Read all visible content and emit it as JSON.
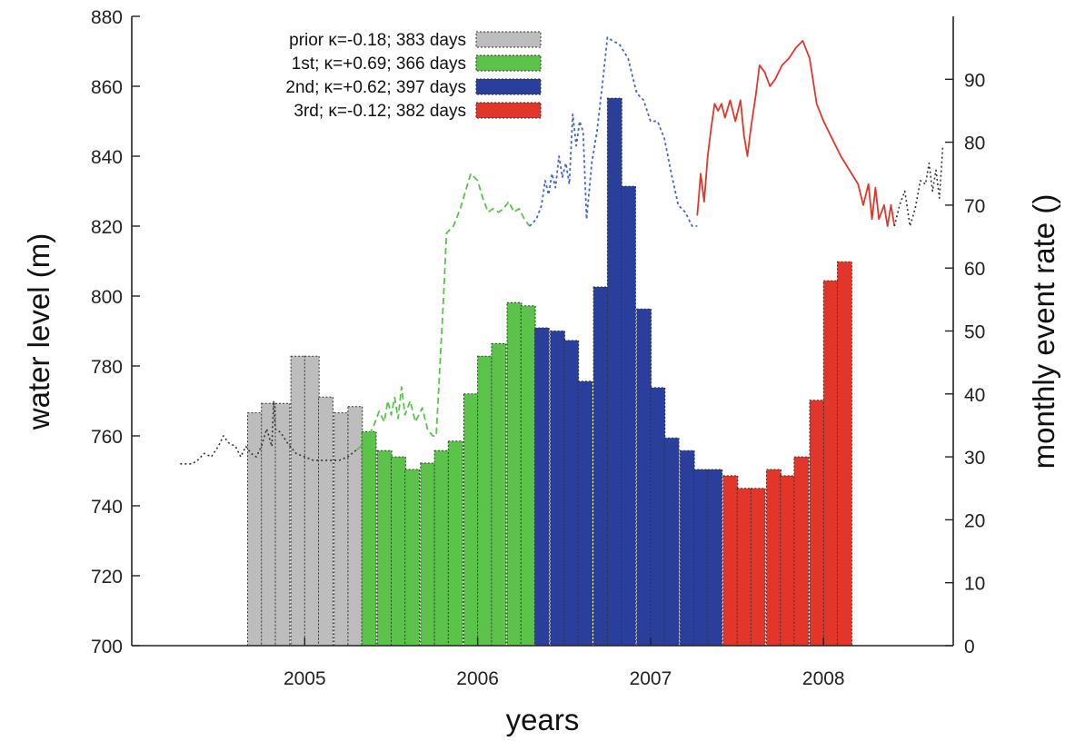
{
  "chart_data": {
    "type": "bar+line",
    "xlabel": "years",
    "ylabel_left": "water level (m)",
    "ylabel_right": "monthly event rate ()",
    "xlim": [
      2004.0,
      2008.75
    ],
    "ylim_left": [
      700,
      880
    ],
    "ylim_right": [
      0,
      100
    ],
    "x_ticks": [
      "2005",
      "2006",
      "2007",
      "2008"
    ],
    "x_tick_values": [
      2005.0,
      2006.0,
      2007.0,
      2008.0
    ],
    "y_ticks_left": [
      700,
      720,
      740,
      760,
      780,
      800,
      820,
      840,
      860,
      880
    ],
    "y_ticks_right": [
      0,
      10,
      20,
      30,
      40,
      50,
      60,
      70,
      80,
      90
    ],
    "legend": {
      "placement": "top-left",
      "entries": [
        {
          "label": "prior κ=-0.18; 383 days",
          "color": "#bdbdbd",
          "pattern": "dotted"
        },
        {
          "label": "1st; κ=+0.69; 366 days",
          "color": "#5bc34a",
          "pattern": "dashed"
        },
        {
          "label": "2nd; κ=+0.62; 397 days",
          "color": "#2a3f9c",
          "pattern": "short-dashed"
        },
        {
          "label": "3rd; κ=-0.12; 382 days",
          "color": "#e2362b",
          "pattern": "solid"
        }
      ]
    },
    "colors": {
      "prior_bar": "#bdbdbd",
      "prior_line": "#333333",
      "first": "#5bc34a",
      "second": "#2a3f9c",
      "second_line": "#4466cc",
      "third": "#e2362b"
    },
    "bar_width_years": 0.0833,
    "event_rate_bars": [
      {
        "x": 2004.67,
        "value": 37,
        "period": "prior"
      },
      {
        "x": 2004.75,
        "value": 38.5,
        "period": "prior"
      },
      {
        "x": 2004.83,
        "value": 38.5,
        "period": "prior"
      },
      {
        "x": 2004.92,
        "value": 46,
        "period": "prior"
      },
      {
        "x": 2005.0,
        "value": 46,
        "period": "prior"
      },
      {
        "x": 2005.08,
        "value": 39.5,
        "period": "prior"
      },
      {
        "x": 2005.17,
        "value": 37,
        "period": "prior"
      },
      {
        "x": 2005.25,
        "value": 38,
        "period": "prior"
      },
      {
        "x": 2005.33,
        "value": 34,
        "period": "first"
      },
      {
        "x": 2005.42,
        "value": 31,
        "period": "first"
      },
      {
        "x": 2005.5,
        "value": 30,
        "period": "first"
      },
      {
        "x": 2005.58,
        "value": 28,
        "period": "first"
      },
      {
        "x": 2005.67,
        "value": 29,
        "period": "first"
      },
      {
        "x": 2005.75,
        "value": 31,
        "period": "first"
      },
      {
        "x": 2005.83,
        "value": 32.5,
        "period": "first"
      },
      {
        "x": 2005.92,
        "value": 40,
        "period": "first"
      },
      {
        "x": 2006.0,
        "value": 46,
        "period": "first"
      },
      {
        "x": 2006.08,
        "value": 48,
        "period": "first"
      },
      {
        "x": 2006.17,
        "value": 54.5,
        "period": "first"
      },
      {
        "x": 2006.25,
        "value": 54,
        "period": "first"
      },
      {
        "x": 2006.33,
        "value": 50.5,
        "period": "second"
      },
      {
        "x": 2006.42,
        "value": 50,
        "period": "second"
      },
      {
        "x": 2006.5,
        "value": 48.5,
        "period": "second"
      },
      {
        "x": 2006.58,
        "value": 42,
        "period": "second"
      },
      {
        "x": 2006.67,
        "value": 57,
        "period": "second"
      },
      {
        "x": 2006.75,
        "value": 87,
        "period": "second"
      },
      {
        "x": 2006.83,
        "value": 73,
        "period": "second"
      },
      {
        "x": 2006.92,
        "value": 53.5,
        "period": "second"
      },
      {
        "x": 2007.0,
        "value": 41,
        "period": "second"
      },
      {
        "x": 2007.08,
        "value": 33,
        "period": "second"
      },
      {
        "x": 2007.17,
        "value": 31,
        "period": "second"
      },
      {
        "x": 2007.25,
        "value": 28,
        "period": "second"
      },
      {
        "x": 2007.33,
        "value": 28,
        "period": "second"
      },
      {
        "x": 2007.42,
        "value": 27,
        "period": "third"
      },
      {
        "x": 2007.5,
        "value": 25,
        "period": "third"
      },
      {
        "x": 2007.58,
        "value": 25,
        "period": "third"
      },
      {
        "x": 2007.67,
        "value": 28,
        "period": "third"
      },
      {
        "x": 2007.75,
        "value": 27,
        "period": "third"
      },
      {
        "x": 2007.83,
        "value": 30,
        "period": "third"
      },
      {
        "x": 2007.92,
        "value": 39,
        "period": "third"
      },
      {
        "x": 2008.0,
        "value": 58,
        "period": "third"
      },
      {
        "x": 2008.08,
        "value": 61,
        "period": "third"
      }
    ],
    "water_level_series": [
      {
        "period": "prior",
        "points": [
          [
            2004.28,
            752
          ],
          [
            2004.35,
            752
          ],
          [
            2004.38,
            753
          ],
          [
            2004.42,
            755
          ],
          [
            2004.46,
            754
          ],
          [
            2004.5,
            757
          ],
          [
            2004.53,
            760
          ],
          [
            2004.56,
            758
          ],
          [
            2004.6,
            757
          ],
          [
            2004.63,
            754
          ],
          [
            2004.66,
            757
          ],
          [
            2004.69,
            755
          ],
          [
            2004.72,
            754
          ],
          [
            2004.75,
            757
          ],
          [
            2004.78,
            762
          ],
          [
            2004.81,
            757
          ],
          [
            2004.82,
            770
          ],
          [
            2004.83,
            762
          ],
          [
            2004.86,
            761
          ],
          [
            2004.9,
            758
          ],
          [
            2004.95,
            755
          ],
          [
            2005.0,
            754
          ],
          [
            2005.05,
            753
          ],
          [
            2005.1,
            753
          ],
          [
            2005.15,
            753
          ],
          [
            2005.2,
            753
          ],
          [
            2005.25,
            754
          ],
          [
            2005.3,
            756
          ]
        ]
      },
      {
        "period": "first",
        "points": [
          [
            2005.3,
            756
          ],
          [
            2005.35,
            758
          ],
          [
            2005.4,
            763
          ],
          [
            2005.43,
            767
          ],
          [
            2005.46,
            764
          ],
          [
            2005.48,
            770
          ],
          [
            2005.5,
            766
          ],
          [
            2005.52,
            771
          ],
          [
            2005.54,
            765
          ],
          [
            2005.56,
            774
          ],
          [
            2005.58,
            766
          ],
          [
            2005.61,
            770
          ],
          [
            2005.64,
            764
          ],
          [
            2005.68,
            768
          ],
          [
            2005.71,
            762
          ],
          [
            2005.74,
            760
          ],
          [
            2005.76,
            760
          ],
          [
            2005.8,
            797
          ],
          [
            2005.82,
            818
          ],
          [
            2005.86,
            820
          ],
          [
            2005.9,
            825
          ],
          [
            2005.93,
            830
          ],
          [
            2005.96,
            835
          ],
          [
            2006.0,
            833
          ],
          [
            2006.03,
            828
          ],
          [
            2006.06,
            824
          ],
          [
            2006.09,
            825
          ],
          [
            2006.12,
            824
          ],
          [
            2006.15,
            825
          ],
          [
            2006.18,
            827
          ],
          [
            2006.21,
            824
          ],
          [
            2006.24,
            825
          ],
          [
            2006.27,
            822
          ],
          [
            2006.3,
            820
          ]
        ]
      },
      {
        "period": "second",
        "points": [
          [
            2006.3,
            820
          ],
          [
            2006.34,
            822
          ],
          [
            2006.37,
            826
          ],
          [
            2006.39,
            833
          ],
          [
            2006.41,
            829
          ],
          [
            2006.43,
            835
          ],
          [
            2006.45,
            831
          ],
          [
            2006.47,
            840
          ],
          [
            2006.49,
            834
          ],
          [
            2006.51,
            838
          ],
          [
            2006.53,
            832
          ],
          [
            2006.55,
            852
          ],
          [
            2006.57,
            843
          ],
          [
            2006.59,
            850
          ],
          [
            2006.61,
            847
          ],
          [
            2006.63,
            822
          ],
          [
            2006.66,
            838
          ],
          [
            2006.69,
            847
          ],
          [
            2006.72,
            860
          ],
          [
            2006.75,
            874
          ],
          [
            2006.78,
            873
          ],
          [
            2006.82,
            872
          ],
          [
            2006.87,
            868
          ],
          [
            2006.92,
            858
          ],
          [
            2006.96,
            856
          ],
          [
            2007.0,
            850
          ],
          [
            2007.04,
            850
          ],
          [
            2007.08,
            845
          ],
          [
            2007.12,
            835
          ],
          [
            2007.16,
            826
          ],
          [
            2007.2,
            824
          ],
          [
            2007.24,
            820
          ],
          [
            2007.27,
            820
          ]
        ]
      },
      {
        "period": "third",
        "points": [
          [
            2007.27,
            823
          ],
          [
            2007.29,
            835
          ],
          [
            2007.31,
            827
          ],
          [
            2007.33,
            840
          ],
          [
            2007.35,
            848
          ],
          [
            2007.37,
            855
          ],
          [
            2007.39,
            853
          ],
          [
            2007.41,
            855
          ],
          [
            2007.43,
            851
          ],
          [
            2007.46,
            856
          ],
          [
            2007.49,
            850
          ],
          [
            2007.52,
            856
          ],
          [
            2007.54,
            846
          ],
          [
            2007.56,
            840
          ],
          [
            2007.58,
            848
          ],
          [
            2007.61,
            858
          ],
          [
            2007.63,
            866
          ],
          [
            2007.66,
            864
          ],
          [
            2007.69,
            860
          ],
          [
            2007.72,
            862
          ],
          [
            2007.76,
            866
          ],
          [
            2007.8,
            868
          ],
          [
            2007.84,
            871
          ],
          [
            2007.88,
            873
          ],
          [
            2007.92,
            868
          ],
          [
            2007.96,
            855
          ],
          [
            2008.0,
            850
          ],
          [
            2008.05,
            845
          ],
          [
            2008.1,
            840
          ],
          [
            2008.15,
            836
          ],
          [
            2008.2,
            832
          ],
          [
            2008.23,
            826
          ],
          [
            2008.26,
            832
          ],
          [
            2008.28,
            822
          ],
          [
            2008.3,
            831
          ],
          [
            2008.32,
            822
          ],
          [
            2008.35,
            826
          ],
          [
            2008.37,
            820
          ],
          [
            2008.39,
            826
          ],
          [
            2008.41,
            820
          ]
        ]
      },
      {
        "period": "after",
        "points": [
          [
            2008.41,
            820
          ],
          [
            2008.44,
            826
          ],
          [
            2008.47,
            830
          ],
          [
            2008.5,
            820
          ],
          [
            2008.53,
            825
          ],
          [
            2008.56,
            833
          ],
          [
            2008.59,
            832
          ],
          [
            2008.61,
            838
          ],
          [
            2008.63,
            830
          ],
          [
            2008.65,
            836
          ],
          [
            2008.67,
            828
          ],
          [
            2008.69,
            843
          ]
        ]
      }
    ]
  }
}
